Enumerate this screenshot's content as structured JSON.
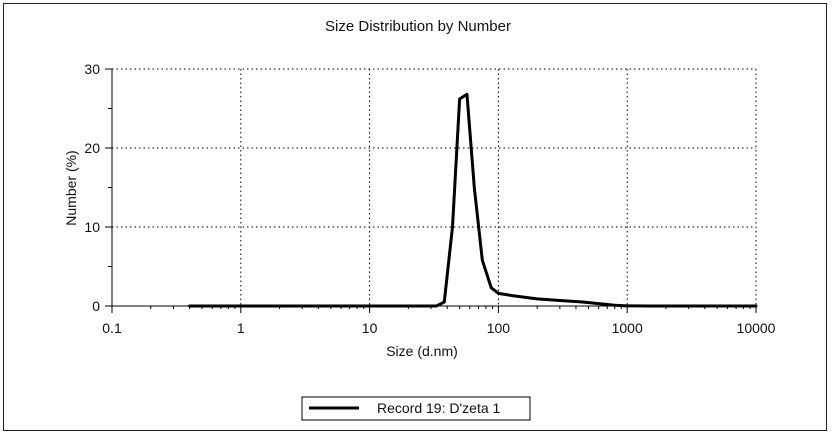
{
  "chart_data": {
    "type": "line",
    "title": "Size Distribution by Number",
    "xlabel": "Size (d.nm)",
    "ylabel": "Number (%)",
    "x_scale": "log",
    "xlim": [
      0.1,
      10000
    ],
    "ylim": [
      0,
      30
    ],
    "x_ticks": [
      0.1,
      1,
      10,
      100,
      1000,
      10000
    ],
    "x_tick_labels": [
      "0.1",
      "1",
      "10",
      "100",
      "1000",
      "10000"
    ],
    "y_ticks": [
      0,
      10,
      20,
      30
    ],
    "y_tick_labels": [
      "0",
      "10",
      "20",
      "30"
    ],
    "grid": true,
    "legend_position": "bottom-center",
    "series": [
      {
        "name": "Record 19: D'zeta 1",
        "color": "#000000",
        "x": [
          0.4,
          1,
          5,
          20,
          33,
          38,
          44,
          50,
          57,
          65,
          75,
          88,
          100,
          130,
          200,
          300,
          450,
          600,
          800,
          1000,
          1500,
          3000,
          6000,
          10000
        ],
        "y": [
          0,
          0,
          0,
          0,
          0,
          0.5,
          10,
          26.2,
          26.8,
          15,
          5.8,
          2.3,
          1.6,
          1.3,
          0.9,
          0.7,
          0.5,
          0.3,
          0.1,
          0.02,
          0,
          0,
          0,
          0
        ]
      }
    ]
  }
}
